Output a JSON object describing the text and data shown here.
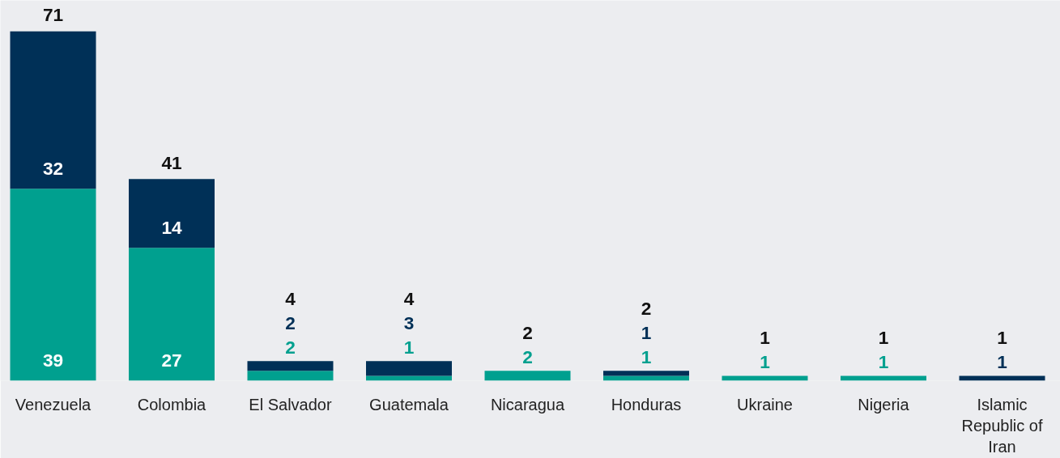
{
  "chart_data": {
    "type": "bar",
    "stacked": true,
    "categories": [
      "Venezuela",
      "Colombia",
      "El Salvador",
      "Guatemala",
      "Nicaragua",
      "Honduras",
      "Ukraine",
      "Nigeria",
      "Islamic Republic of Iran"
    ],
    "series": [
      {
        "color": "#00a08f",
        "values": [
          39,
          27,
          2,
          1,
          2,
          1,
          1,
          1,
          0
        ],
        "value_labels": [
          "39",
          "27",
          "2",
          "1",
          "2",
          "1",
          "1",
          "1",
          null
        ]
      },
      {
        "color": "#003057",
        "values": [
          32,
          14,
          2,
          3,
          0,
          1,
          0,
          0,
          1
        ],
        "value_labels": [
          "32",
          "14",
          "2",
          "3",
          null,
          "1",
          null,
          null,
          "1"
        ]
      }
    ],
    "totals": [
      "71",
      "41",
      "4",
      "4",
      "2",
      "2",
      "1",
      "1",
      "1"
    ],
    "grid": false
  }
}
